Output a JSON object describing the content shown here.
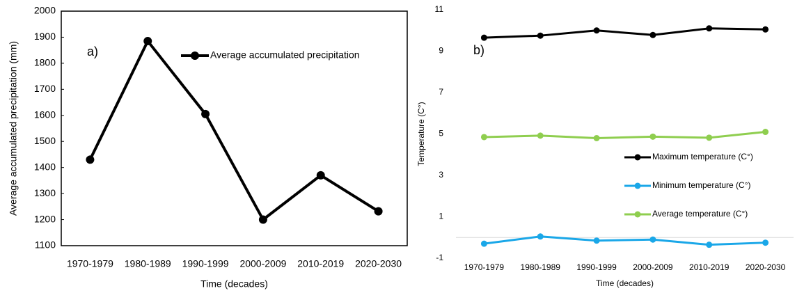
{
  "chart_data": [
    {
      "type": "line",
      "annotation": "a)",
      "x_label": "Time  (decades)",
      "y_label": "Average accumulated precipitation (mm)",
      "categories": [
        "1970-1979",
        "1980-1989",
        "1990-1999",
        "2000-2009",
        "2010-2019",
        "2020-2030"
      ],
      "series": [
        {
          "name": "Average accumulated precipitation",
          "color": "#000000",
          "values": [
            1430,
            1885,
            1605,
            1200,
            1370,
            1232
          ]
        }
      ],
      "ylim": [
        1100,
        2000
      ],
      "yticks": [
        1100,
        1200,
        1300,
        1400,
        1500,
        1600,
        1700,
        1800,
        1900,
        2000
      ]
    },
    {
      "type": "line",
      "annotation": "b)",
      "x_label": "Time  (decades)",
      "y_label": "Temperature (C°)",
      "categories": [
        "1970-1979",
        "1980-1989",
        "1990-1999",
        "2000-2009",
        "2010-2019",
        "2020-2030"
      ],
      "series": [
        {
          "name": "Maximum temperature (C°)",
          "color": "#000000",
          "values": [
            9.65,
            9.75,
            10.0,
            9.78,
            10.1,
            10.05
          ]
        },
        {
          "name": "Minimum temperature (C°)",
          "color": "#1aa7e8",
          "values": [
            -0.3,
            0.05,
            -0.15,
            -0.1,
            -0.35,
            -0.25
          ]
        },
        {
          "name": "Average temperature (C°)",
          "color": "#8fce4f",
          "values": [
            4.85,
            4.92,
            4.8,
            4.87,
            4.82,
            5.1
          ]
        }
      ],
      "ylim": [
        -1,
        11
      ],
      "yticks": [
        -1,
        1,
        3,
        5,
        7,
        9,
        11
      ]
    }
  ]
}
